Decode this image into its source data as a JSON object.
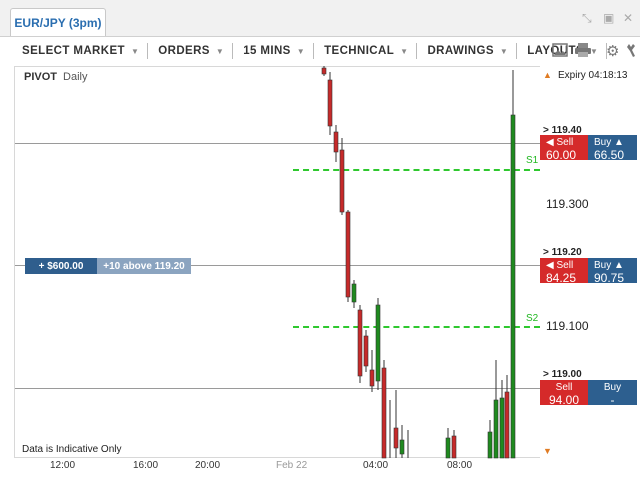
{
  "window": {
    "tab_title": "EUR/JPY (3pm)",
    "controls": [
      "expand-icon",
      "restore-icon",
      "close-icon"
    ]
  },
  "toolbar": {
    "items": [
      {
        "label": "SELECT MARKET"
      },
      {
        "label": "ORDERS"
      },
      {
        "label": "15 MINS"
      },
      {
        "label": "TECHNICAL"
      },
      {
        "label": "DRAWINGS"
      },
      {
        "label": "LAYOUTS"
      }
    ],
    "icons": [
      "image-icon",
      "print-icon",
      "gear-icon",
      "wrench-icon"
    ]
  },
  "chart": {
    "indicator_label": "PIVOT",
    "indicator_period": "Daily",
    "disclaimer": "Data is Indicative Only",
    "expiry_text": "Expiry 04:18:13",
    "x_ticks": [
      "12:00",
      "16:00",
      "20:00",
      "Feb 22",
      "04:00",
      "08:00"
    ],
    "y_axis_labels": [
      "119.300",
      "119.100"
    ],
    "support_labels": [
      "S1",
      "S2"
    ],
    "order": {
      "amount": "+ $600.00",
      "description": "+10 above 119.20"
    },
    "levels": [
      {
        "label": "> 119.40",
        "sell_label": "Sell",
        "sell_value": "60.00",
        "buy_label": "Buy",
        "buy_value": "66.50"
      },
      {
        "label": "> 119.20",
        "sell_label": "Sell",
        "sell_value": "84.25",
        "buy_label": "Buy",
        "buy_value": "90.75"
      },
      {
        "label": "> 119.00",
        "sell_label": "Sell",
        "sell_value": "94.00",
        "buy_label": "Buy",
        "buy_value": "-"
      }
    ],
    "colors": {
      "up": "#1f8a1f",
      "down": "#c62a2a",
      "support": "#2ec82e",
      "sell": "#d52a2a",
      "buy": "#2d5f8f"
    }
  }
}
